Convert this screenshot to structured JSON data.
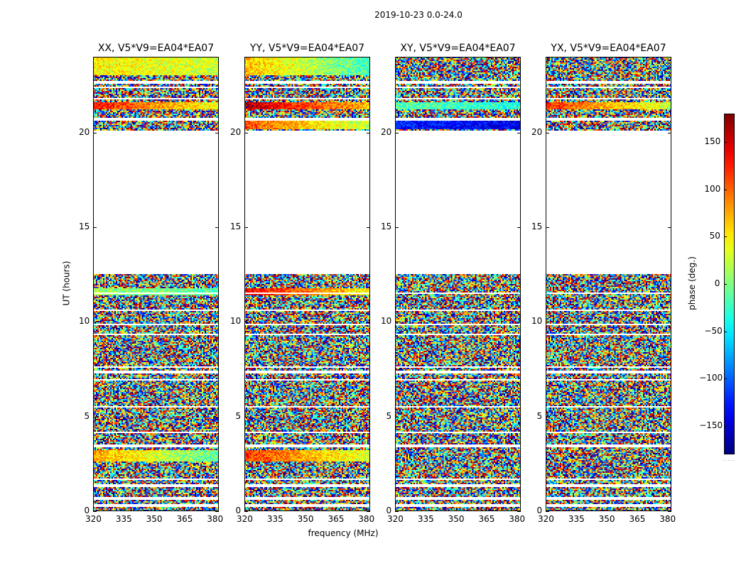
{
  "figure": {
    "suptitle": "2019-10-23 0.0-24.0"
  },
  "chart_data": {
    "type": "heatmap",
    "title": "2019-10-23 0.0-24.0",
    "xlabel": "frequency (MHz)",
    "ylabel": "UT (hours)",
    "xlim": [
      320,
      382
    ],
    "ylim": [
      0,
      24
    ],
    "xticks": [
      "320",
      "335",
      "350",
      "365",
      "380"
    ],
    "yticks": [
      "0",
      "5",
      "10",
      "15",
      "20"
    ],
    "panels": [
      {
        "title": "XX, V5*V9=EA04*EA07",
        "polarization": "XX"
      },
      {
        "title": "YY, V5*V9=EA04*EA07",
        "polarization": "YY"
      },
      {
        "title": "XY, V5*V9=EA04*EA07",
        "polarization": "XY"
      },
      {
        "title": "YX, V5*V9=EA04*EA07",
        "polarization": "YX"
      }
    ],
    "colorbar": {
      "label": "phase (deg.)",
      "range": [
        -180,
        180
      ],
      "ticks": [
        "150",
        "100",
        "50",
        "0",
        "−50",
        "−100",
        "−150"
      ],
      "tick_values": [
        150,
        100,
        50,
        0,
        -50,
        -100,
        -150
      ],
      "colormap": "jet"
    },
    "data_gap_hours": [
      12.5,
      20.1
    ],
    "coherent_bands": {
      "XX": [
        [
          23.0,
          24.0,
          50
        ],
        [
          21.2,
          21.6,
          130
        ],
        [
          2.6,
          3.2,
          80
        ],
        [
          11.4,
          11.8,
          10
        ]
      ],
      "YY": [
        [
          23.0,
          24.0,
          70
        ],
        [
          21.2,
          21.6,
          160
        ],
        [
          20.2,
          20.6,
          110
        ],
        [
          2.6,
          3.2,
          120
        ],
        [
          11.4,
          11.8,
          140
        ]
      ],
      "XY": [
        [
          21.2,
          21.6,
          -10
        ],
        [
          20.2,
          20.6,
          -120
        ]
      ],
      "YX": [
        [
          21.2,
          21.6,
          120
        ]
      ]
    }
  }
}
